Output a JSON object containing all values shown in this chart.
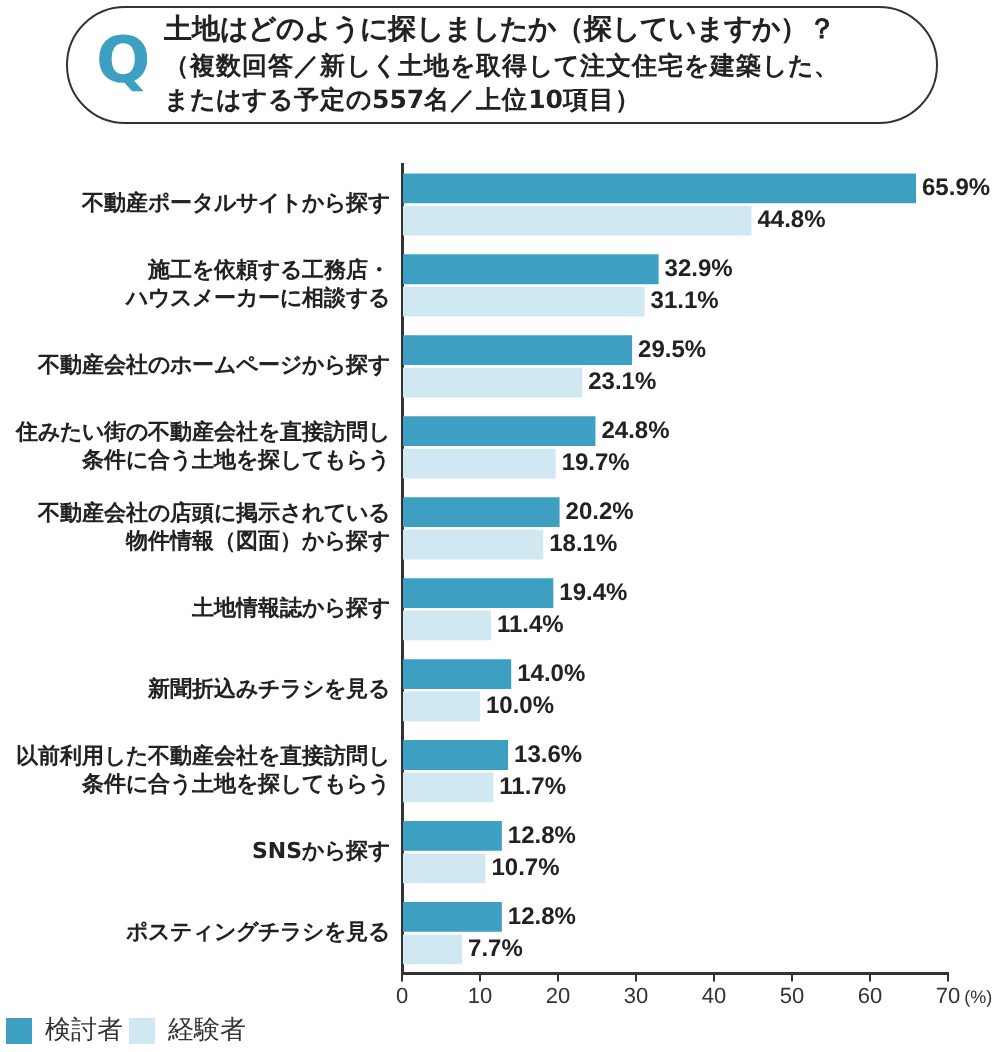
{
  "chart_data": {
    "type": "bar",
    "orientation": "horizontal",
    "title": "土地はどのように探しましたか（探していますか）？",
    "subtitle": "（複数回答／新しく土地を取得して注文住宅を建築した、またはする予定の557名／上位10項目）",
    "annotations": [
      "Q"
    ],
    "categories": [
      "不動産ポータルサイトから探す",
      "施工を依頼する工務店・ハウスメーカーに相談する",
      "不動産会社のホームページから探す",
      "住みたい街の不動産会社を直接訪問し条件に合う土地を探してもらう",
      "不動産会社の店頭に掲示されている物件情報（図面）から探す",
      "土地情報誌から探す",
      "新聞折込みチラシを見る",
      "以前利用した不動産会社を直接訪問し条件に合う土地を探してもらう",
      "SNSから探す",
      "ポスティングチラシを見る"
    ],
    "series": [
      {
        "name": "検討者",
        "color": "#3d9fc1",
        "values": [
          65.9,
          32.9,
          29.5,
          24.8,
          20.2,
          19.4,
          14.0,
          13.6,
          12.8,
          12.8
        ],
        "value_labels": [
          "65.9%",
          "32.9%",
          "29.5%",
          "24.8%",
          "20.2%",
          "19.4%",
          "14.0%",
          "13.6%",
          "12.8%",
          "12.8%"
        ]
      },
      {
        "name": "経験者",
        "color": "#cfe8f2",
        "values": [
          44.8,
          31.1,
          23.1,
          19.7,
          18.1,
          11.4,
          10.0,
          11.7,
          10.7,
          7.7
        ],
        "value_labels": [
          "44.8%",
          "31.1%",
          "23.1%",
          "19.7%",
          "18.1%",
          "11.4%",
          "10.0%",
          "11.7%",
          "10.7%",
          "7.7%"
        ]
      }
    ],
    "xlim": [
      0,
      70
    ],
    "xticks": [
      0,
      10,
      20,
      30,
      40,
      50,
      60,
      70
    ],
    "xlabel": "(%)",
    "legend": "bottom left"
  }
}
